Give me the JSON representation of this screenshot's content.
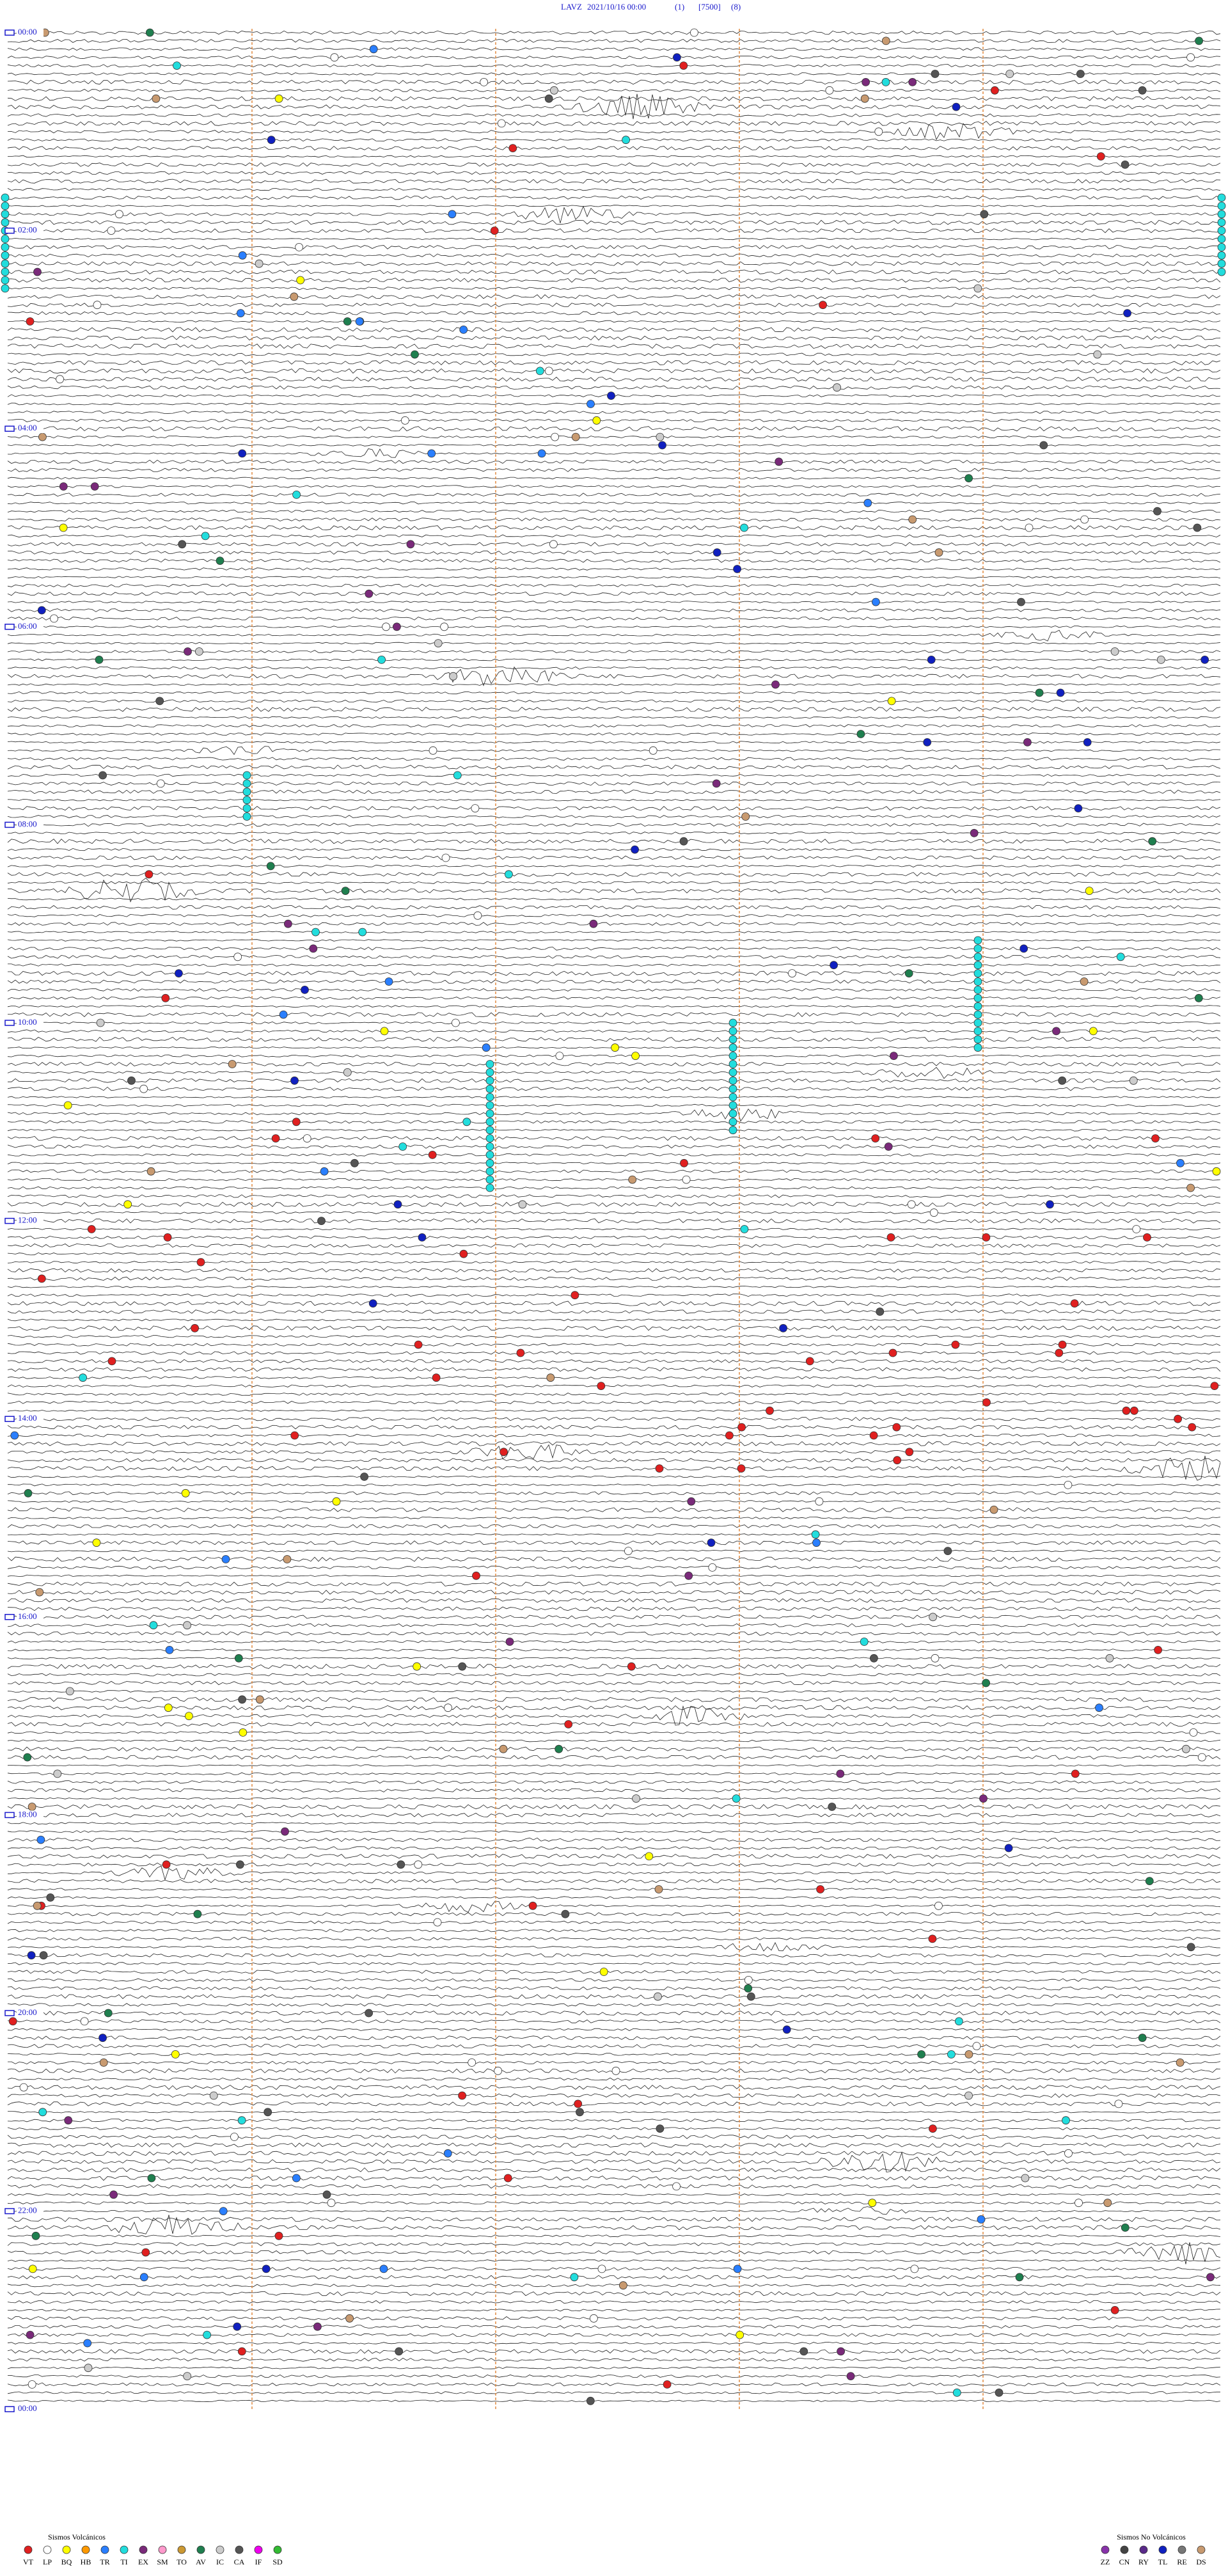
{
  "header": {
    "station": "LAVZ",
    "datetime": "2021/10/16 00:00",
    "channel": "(1)",
    "scale": "[7500]",
    "filter": "(8)"
  },
  "hour_labels": [
    "00:00",
    "02:00",
    "04:00",
    "06:00",
    "08:00",
    "10:00",
    "12:00",
    "14:00",
    "16:00",
    "18:00",
    "20:00",
    "22:00",
    "00:00"
  ],
  "legend": {
    "volcanic": {
      "title": "Sismos Volcánicos",
      "items": [
        {
          "code": "VT",
          "color": "#e02020"
        },
        {
          "code": "LP",
          "color": "#ffffff"
        },
        {
          "code": "BQ",
          "color": "#ffff00"
        },
        {
          "code": "HB",
          "color": "#ff9900"
        },
        {
          "code": "TR",
          "color": "#2a7fff"
        },
        {
          "code": "TI",
          "color": "#22dddd"
        },
        {
          "code": "EX",
          "color": "#7a2a7a"
        },
        {
          "code": "SM",
          "color": "#ff99cc"
        },
        {
          "code": "TO",
          "color": "#cc9933"
        },
        {
          "code": "AV",
          "color": "#1f7f4f"
        },
        {
          "code": "IC",
          "color": "#cccccc"
        },
        {
          "code": "CA",
          "color": "#555555"
        },
        {
          "code": "IF",
          "color": "#ee00ee"
        },
        {
          "code": "SD",
          "color": "#33bb33"
        }
      ]
    },
    "non_volcanic": {
      "title": "Sismos No Volcánicos",
      "items": [
        {
          "code": "ZZ",
          "color": "#8833aa"
        },
        {
          "code": "CN",
          "color": "#444444"
        },
        {
          "code": "RY",
          "color": "#5a2a8a"
        },
        {
          "code": "TL",
          "color": "#1020c0"
        },
        {
          "code": "RE",
          "color": "#777777"
        },
        {
          "code": "DS",
          "color": "#c89a70"
        }
      ]
    }
  }
}
